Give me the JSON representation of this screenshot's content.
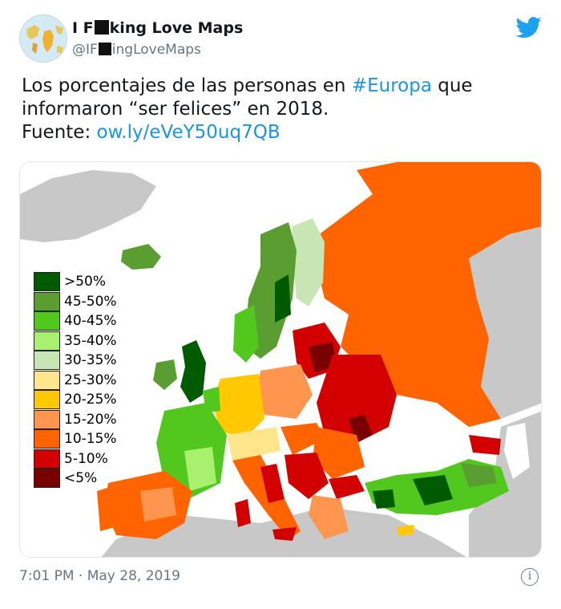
{
  "author": {
    "name_start": "I F",
    "name_end": "king Love Maps",
    "handle_start": "@IF",
    "handle_end": "ingLoveMaps"
  },
  "tweet": {
    "line1_start": "Los porcentajes de las personas en ",
    "hashtag": "#Europa",
    "line1_end": " que",
    "line2": "informaron “ser felices” en 2018.",
    "source_label": "Fuente: ",
    "source_link": "ow.ly/eVeY50uq7QB"
  },
  "legend": {
    "items": [
      {
        "label": ">50%",
        "color": "#005a00"
      },
      {
        "label": "45-50%",
        "color": "#5a9e32"
      },
      {
        "label": "40-45%",
        "color": "#52c81e"
      },
      {
        "label": "35-40%",
        "color": "#a8f06e"
      },
      {
        "label": "30-35%",
        "color": "#c8e6b4"
      },
      {
        "label": "25-30%",
        "color": "#ffe68c"
      },
      {
        "label": "20-25%",
        "color": "#ffc800"
      },
      {
        "label": "15-20%",
        "color": "#ff9650"
      },
      {
        "label": "10-15%",
        "color": "#ff6400"
      },
      {
        "label": "5-10%",
        "color": "#d20000"
      },
      {
        "label": "<5%",
        "color": "#780000"
      }
    ]
  },
  "footer": {
    "timestamp": "7:01 PM · May 28, 2019",
    "info_glyph": "i"
  },
  "colors": {
    "twitter_blue": "#1b95e0",
    "no_data_gray": "#c8c8c8"
  }
}
